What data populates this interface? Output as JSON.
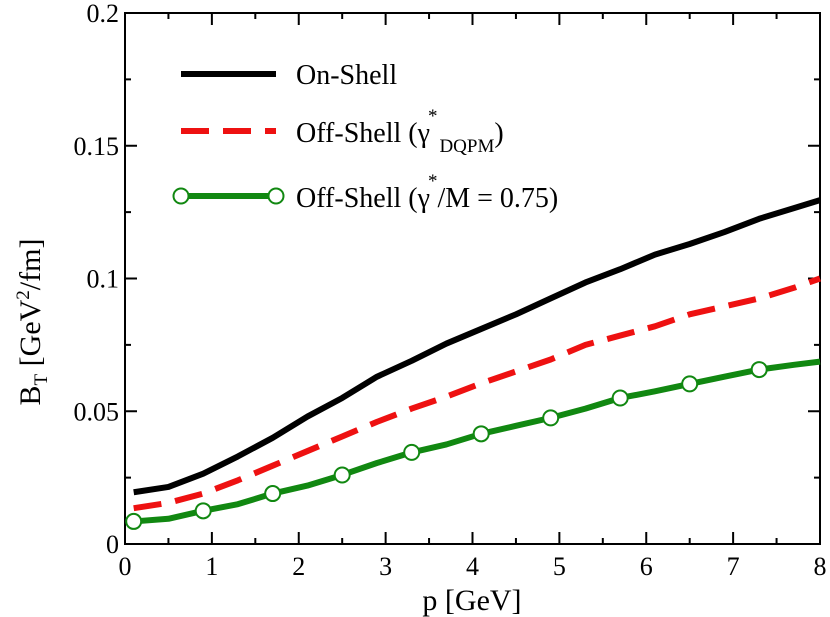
{
  "chart_data": {
    "type": "line",
    "xlabel": "p [GeV]",
    "ylabel": {
      "base": "B",
      "sub": "T",
      "rest_1": " [GeV",
      "sup": "2",
      "rest_2": "/fm]"
    },
    "xlim": [
      0,
      8
    ],
    "ylim": [
      0,
      0.2
    ],
    "x_ticks": [
      0,
      1,
      2,
      3,
      4,
      5,
      6,
      7,
      8
    ],
    "y_ticks": [
      0,
      0.05,
      0.1,
      0.15,
      0.2
    ],
    "x_tick_labels": [
      "0",
      "1",
      "2",
      "3",
      "4",
      "5",
      "6",
      "7",
      "8"
    ],
    "y_tick_labels": [
      "0",
      "0.05",
      "0.1",
      "0.15",
      "0.2"
    ],
    "grid": false,
    "legend_position": "top-left",
    "series": [
      {
        "name": "On-Shell",
        "color": "#000000",
        "style": "solid",
        "marker": "none",
        "x": [
          0.1,
          0.5,
          0.9,
          1.3,
          1.7,
          2.1,
          2.5,
          2.9,
          3.3,
          3.7,
          4.1,
          4.5,
          4.9,
          5.3,
          5.7,
          6.1,
          6.5,
          6.9,
          7.3,
          7.7,
          8.0
        ],
        "y": [
          0.0195,
          0.0215,
          0.0265,
          0.033,
          0.04,
          0.048,
          0.055,
          0.063,
          0.069,
          0.0755,
          0.081,
          0.0865,
          0.0925,
          0.0985,
          0.1035,
          0.109,
          0.113,
          0.1175,
          0.1225,
          0.1265,
          0.1295
        ]
      },
      {
        "name": "Off-Shell (γ*DQPM)",
        "legend_parts": {
          "base": "Off-Shell (γ",
          "sup": "*",
          "sub": "DQPM",
          "close": ")"
        },
        "color": "#ee1111",
        "style": "dashed",
        "marker": "none",
        "x": [
          0.1,
          0.5,
          0.9,
          1.3,
          1.7,
          2.1,
          2.5,
          2.9,
          3.3,
          3.7,
          4.1,
          4.5,
          4.9,
          5.3,
          5.7,
          6.1,
          6.5,
          6.9,
          7.3,
          7.7,
          8.0
        ],
        "y": [
          0.0135,
          0.0155,
          0.019,
          0.024,
          0.0295,
          0.035,
          0.0405,
          0.046,
          0.051,
          0.0555,
          0.0605,
          0.065,
          0.0695,
          0.075,
          0.0785,
          0.082,
          0.0865,
          0.0895,
          0.0925,
          0.0965,
          0.1
        ]
      },
      {
        "name": "Off-Shell (γ*/M = 0.75)",
        "legend_parts": {
          "base": "Off-Shell (γ",
          "sup": "*",
          "close": "/M = 0.75)"
        },
        "color": "#118811",
        "style": "solid",
        "marker": "open-circle",
        "x": [
          0.1,
          0.5,
          0.9,
          1.3,
          1.7,
          2.1,
          2.5,
          2.9,
          3.3,
          3.7,
          4.1,
          4.5,
          4.9,
          5.3,
          5.7,
          6.1,
          6.5,
          6.9,
          7.3,
          7.7,
          8.0
        ],
        "y": [
          0.0085,
          0.0095,
          0.0125,
          0.015,
          0.019,
          0.022,
          0.026,
          0.0305,
          0.0345,
          0.0375,
          0.0415,
          0.0445,
          0.0475,
          0.051,
          0.055,
          0.0575,
          0.0603,
          0.063,
          0.0657,
          0.0675,
          0.0687
        ],
        "marker_x": [
          0.1,
          0.9,
          1.7,
          2.5,
          3.3,
          4.1,
          4.9,
          5.7,
          6.5,
          7.3
        ]
      }
    ]
  }
}
